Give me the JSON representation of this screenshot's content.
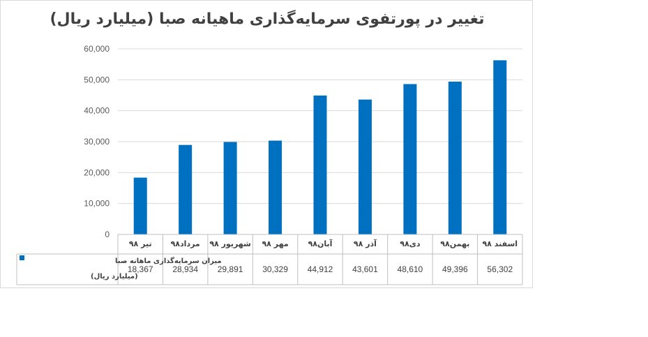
{
  "chart_data": {
    "type": "bar",
    "title": "تغییر در پورتفوی سرمایه‌گذاری ماهیانه صبا (میلیارد ریال)",
    "categories": [
      "تیر ۹۸",
      "مرداد۹۸",
      "شهریور ۹۸",
      "مهر ۹۸",
      "آبان۹۸",
      "آذر ۹۸",
      "دی۹۸",
      "بهمن۹۸",
      "اسفند ۹۸"
    ],
    "series": [
      {
        "name": "میزان سرمایه‌گذاری ماهانه صبا (میلیارد ریال)",
        "values": [
          18367,
          28934,
          29891,
          30329,
          44912,
          43601,
          48610,
          49396,
          56302
        ],
        "labels": [
          "18,367",
          "28,934",
          "29,891",
          "30,329",
          "44,912",
          "43,601",
          "48,610",
          "49,396",
          "56,302"
        ],
        "color": "#0070c0"
      }
    ],
    "yticks": [
      "0",
      "10,000",
      "20,000",
      "30,000",
      "40,000",
      "50,000",
      "60,000"
    ],
    "ylim": [
      0,
      60000
    ],
    "grid": true,
    "legend": "data-table-left"
  }
}
